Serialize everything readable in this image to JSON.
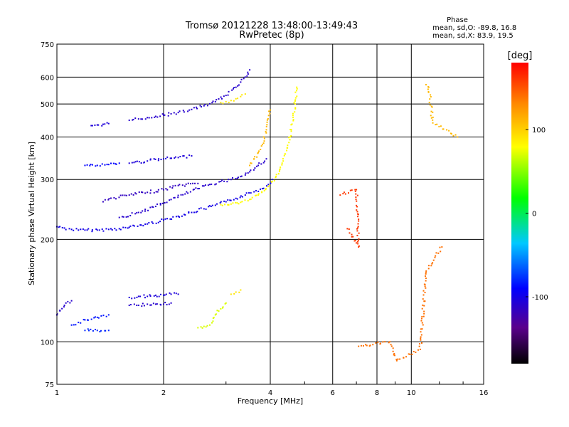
{
  "chart_data": {
    "type": "scatter",
    "title": "Tromsø 20121228 13:48:00-13:49:43",
    "subtitle": "RwPretec (8p)",
    "xlabel": "Frequency [MHz]",
    "ylabel": "Stationary phase Virtual Height [km]",
    "x_scale": "log",
    "y_scale": "log",
    "xlim": [
      1,
      16
    ],
    "ylim": [
      75,
      750
    ],
    "x_ticks": [
      1,
      2,
      4,
      6,
      8,
      10,
      16
    ],
    "x_tick_labels": [
      "1",
      "2",
      "4",
      "6",
      "8",
      "10",
      "16"
    ],
    "y_ticks": [
      75,
      100,
      200,
      300,
      400,
      500,
      600,
      750
    ],
    "y_tick_labels": [
      "75",
      "100",
      "200",
      "300",
      "400",
      "500",
      "600",
      "750"
    ],
    "grid": true,
    "stats": {
      "heading": "Phase",
      "line_o": "mean, sd,O: -89.8, 16.8",
      "line_x": "mean, sd,X: 83.9, 19.5",
      "mean_o": -89.8,
      "sd_o": 16.8,
      "mean_x": 83.9,
      "sd_x": 19.5
    },
    "colorbar": {
      "label": "[deg]",
      "range": [
        -180,
        180
      ],
      "ticks": [
        100,
        0,
        -100
      ],
      "tick_labels": [
        "100",
        "0",
        "-100"
      ]
    },
    "series": [
      {
        "x": [
          1.0,
          1.05,
          1.1,
          1.15,
          1.2,
          1.3,
          1.4,
          1.5,
          1.6,
          1.8,
          2.0,
          2.2,
          2.4,
          2.6,
          2.8,
          3.0,
          3.2,
          3.4,
          3.6,
          3.8,
          3.95,
          4.05
        ],
        "y": [
          218,
          216,
          214,
          213,
          213,
          213,
          214,
          215,
          217,
          222,
          228,
          234,
          240,
          246,
          252,
          258,
          264,
          270,
          276,
          282,
          290,
          300
        ],
        "phase": -100
      },
      {
        "x": [
          1.5,
          1.7,
          1.9,
          2.1,
          2.3,
          2.5,
          2.7,
          2.9,
          3.1,
          3.3,
          3.5,
          3.7,
          3.9
        ],
        "y": [
          232,
          240,
          250,
          262,
          272,
          282,
          290,
          296,
          300,
          306,
          316,
          330,
          345
        ],
        "phase": -110
      },
      {
        "x": [
          1.35,
          1.45,
          1.6,
          1.8,
          2.0,
          2.2,
          2.5
        ],
        "y": [
          258,
          265,
          270,
          275,
          280,
          288,
          292
        ],
        "phase": -115
      },
      {
        "x": [
          2.9,
          3.1,
          3.3,
          3.5,
          3.7,
          3.85,
          3.95,
          4.05,
          4.15,
          4.25,
          4.35,
          4.45,
          4.55,
          4.65,
          4.7,
          4.75
        ],
        "y": [
          253,
          254,
          257,
          262,
          270,
          278,
          286,
          296,
          306,
          320,
          340,
          365,
          400,
          450,
          510,
          560
        ],
        "phase": 80
      },
      {
        "x": [
          3.5,
          3.6,
          3.7,
          3.8,
          3.9,
          4.0
        ],
        "y": [
          330,
          345,
          360,
          380,
          420,
          480
        ],
        "phase": 110
      },
      {
        "x": [
          1.25,
          1.3,
          1.35,
          1.4
        ],
        "y": [
          432,
          434,
          436,
          438
        ],
        "phase": -105
      },
      {
        "x": [
          1.6,
          1.7,
          1.8,
          1.9,
          2.0,
          2.1,
          2.2,
          2.4,
          2.6,
          2.8,
          3.0,
          3.2,
          3.3,
          3.4,
          3.5
        ],
        "y": [
          448,
          452,
          456,
          460,
          464,
          468,
          472,
          482,
          494,
          508,
          530,
          560,
          580,
          600,
          630
        ],
        "phase": -110
      },
      {
        "x": [
          2.9,
          3.0,
          3.1,
          3.2,
          3.3,
          3.4
        ],
        "y": [
          505,
          508,
          512,
          518,
          526,
          535
        ],
        "phase": 90
      },
      {
        "x": [
          1.2,
          1.3,
          1.4,
          1.5
        ],
        "y": [
          330,
          330,
          332,
          335
        ],
        "phase": -90
      },
      {
        "x": [
          1.6,
          1.8,
          2.0,
          2.2,
          2.4
        ],
        "y": [
          335,
          340,
          345,
          348,
          352
        ],
        "phase": -105
      },
      {
        "x": [
          1.1,
          1.15,
          1.2,
          1.3,
          1.4
        ],
        "y": [
          112,
          114,
          116,
          118,
          120
        ],
        "phase": -85
      },
      {
        "x": [
          1.2,
          1.3,
          1.4
        ],
        "y": [
          108,
          108,
          108
        ],
        "phase": -80
      },
      {
        "x": [
          1.6,
          1.7,
          1.8,
          1.9,
          2.0,
          2.1
        ],
        "y": [
          128,
          128,
          129,
          129,
          129,
          130
        ],
        "phase": -110
      },
      {
        "x": [
          1.6,
          1.7,
          1.8,
          1.9,
          2.0,
          2.1,
          2.2
        ],
        "y": [
          135,
          136,
          136,
          137,
          137,
          138,
          138
        ],
        "phase": -105
      },
      {
        "x": [
          2.5,
          2.6,
          2.7,
          2.8,
          2.9,
          3.0
        ],
        "y": [
          110,
          111,
          112,
          120,
          125,
          130
        ],
        "phase": 70
      },
      {
        "x": [
          3.1,
          3.2,
          3.3
        ],
        "y": [
          138,
          140,
          142
        ],
        "phase": 90
      },
      {
        "x": [
          1.0,
          1.05,
          1.1
        ],
        "y": [
          120,
          128,
          132
        ],
        "phase": -110
      },
      {
        "x": [
          11.0,
          11.2,
          11.5,
          13.5
        ],
        "y": [
          570,
          560,
          440,
          400
        ],
        "phase": 110
      },
      {
        "x": [
          6.3,
          7.0,
          7.1,
          6.6
        ],
        "y": [
          270,
          280,
          190,
          215
        ],
        "phase": 160
      },
      {
        "x": [
          7.1,
          8.7,
          9.1,
          10.6,
          11.0,
          12.2
        ],
        "y": [
          97,
          100,
          88,
          95,
          160,
          190
        ],
        "phase": 140
      }
    ]
  }
}
